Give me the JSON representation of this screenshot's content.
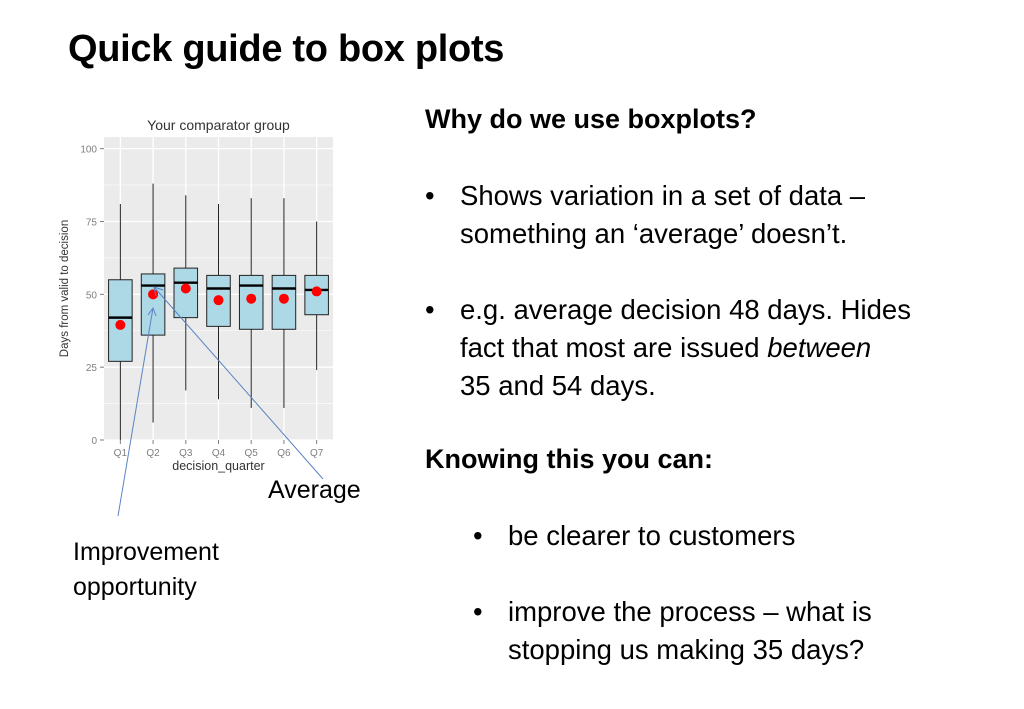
{
  "slide": {
    "title": "Quick guide to box plots"
  },
  "right_panel": {
    "heading1": "Why do we use boxplots?",
    "bullets1": [
      {
        "lines": [
          "Shows variation in a set of data –",
          "something an ‘average’ doesn’t."
        ]
      },
      {
        "line1": "e.g. average decision 48 days. Hides",
        "line2_prefix": "fact that most are issued ",
        "line2_emphasis": "between",
        "line3": "35 and 54 days."
      }
    ],
    "heading2": "Knowing this you can:",
    "bullets2": [
      {
        "lines": [
          "be clearer to customers"
        ]
      },
      {
        "lines": [
          "improve the process – what is",
          "stopping us making 35 days?"
        ]
      }
    ],
    "bullet_symbol": "•"
  },
  "annotations": {
    "average": "Average",
    "improvement_line1": "Improvement",
    "improvement_line2": "opportunity",
    "arrow_color": "#5b84c4"
  },
  "chart_data": {
    "type": "boxplot",
    "title": "Your comparator group",
    "xlabel": "decision_quarter",
    "ylabel": "Days from valid to decision",
    "ylim": [
      0,
      104
    ],
    "yticks": [
      0,
      25,
      50,
      75,
      100
    ],
    "categories": [
      "Q1",
      "Q2",
      "Q3",
      "Q4",
      "Q5",
      "Q6",
      "Q7"
    ],
    "boxes": [
      {
        "min": 0,
        "q1": 27,
        "median": 42,
        "q3": 55,
        "max": 81,
        "mean": 39.5
      },
      {
        "min": 6,
        "q1": 36,
        "median": 53,
        "q3": 57,
        "max": 88,
        "mean": 50
      },
      {
        "min": 17,
        "q1": 42,
        "median": 54,
        "q3": 59,
        "max": 84,
        "mean": 52
      },
      {
        "min": 14,
        "q1": 39,
        "median": 52,
        "q3": 56.5,
        "max": 81,
        "mean": 48
      },
      {
        "min": 11,
        "q1": 38,
        "median": 53,
        "q3": 56.5,
        "max": 83,
        "mean": 48.5
      },
      {
        "min": 11,
        "q1": 38,
        "median": 52,
        "q3": 56.5,
        "max": 83,
        "mean": 48.5
      },
      {
        "min": 24,
        "q1": 43,
        "median": 51.5,
        "q3": 56.5,
        "max": 75,
        "mean": 51
      }
    ],
    "grid": true,
    "colors": {
      "panel": "#ebebeb",
      "grid": "#ffffff",
      "box_fill": "#add8e6",
      "box_stroke": "#222222",
      "mean_point": "#ff0000",
      "tick_text": "#7f7f7f",
      "axis_text": "#333333"
    }
  }
}
